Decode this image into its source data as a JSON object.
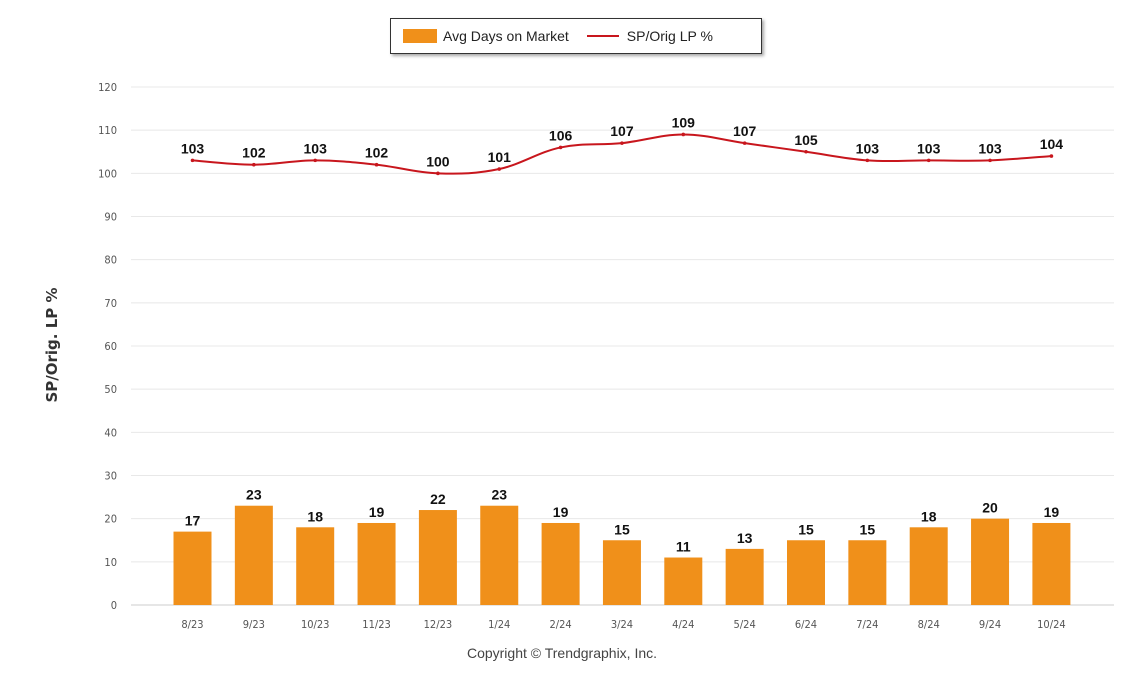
{
  "legend": {
    "bar_label": "Avg Days on Market",
    "line_label": "SP/Orig LP %"
  },
  "copyright": "Copyright © Trendgraphix, Inc.",
  "chart_data": {
    "type": "bar",
    "categories": [
      "8/23",
      "9/23",
      "10/23",
      "11/23",
      "12/23",
      "1/24",
      "2/24",
      "3/24",
      "4/24",
      "5/24",
      "6/24",
      "7/24",
      "8/24",
      "9/24",
      "10/24"
    ],
    "series": [
      {
        "name": "Avg Days on Market",
        "type": "bar",
        "color": "#f0901a",
        "values": [
          17,
          23,
          18,
          19,
          22,
          23,
          19,
          15,
          11,
          13,
          15,
          15,
          18,
          20,
          19
        ]
      },
      {
        "name": "SP/Orig LP %",
        "type": "line",
        "color": "#c8161d",
        "values": [
          103,
          102,
          103,
          102,
          100,
          101,
          106,
          107,
          109,
          107,
          105,
          103,
          103,
          103,
          104
        ]
      }
    ],
    "ylabel": "SP/Orig. LP %",
    "xlabel": "",
    "ylim": [
      0,
      120
    ],
    "yticks": [
      0,
      10,
      20,
      30,
      40,
      50,
      60,
      70,
      80,
      90,
      100,
      110,
      120
    ],
    "grid": true,
    "legend_position": "top-center"
  }
}
